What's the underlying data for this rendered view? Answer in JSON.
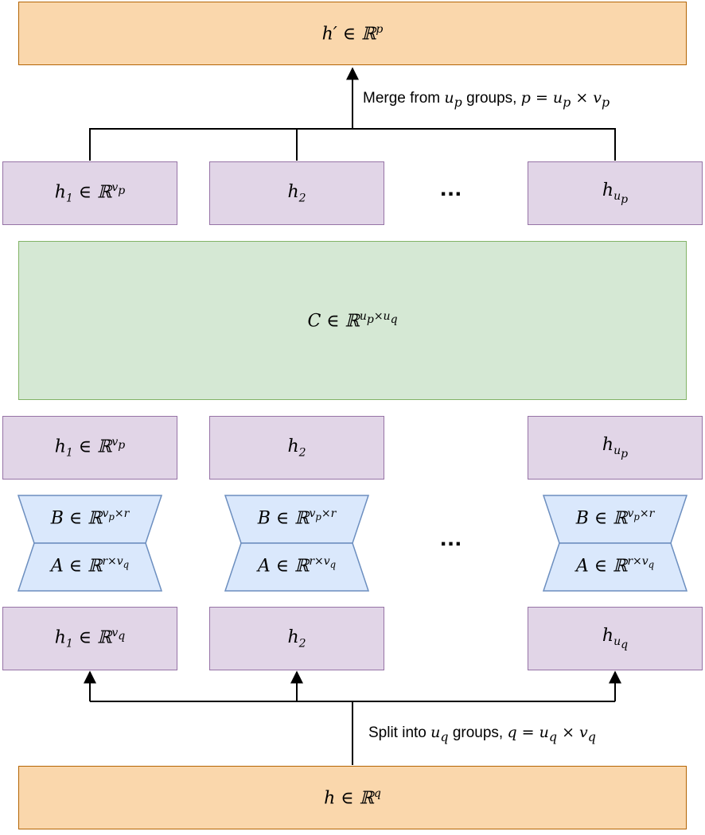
{
  "top_output": {
    "symbol": "h′",
    "set": "ℝ",
    "dim": "p"
  },
  "merge_label": {
    "prefix": "Merge from ",
    "var": "u",
    "var_sub": "p",
    "suffix": " groups, ",
    "eq": "p = u",
    "eq_sub1": "p",
    "times": " × v",
    "eq_sub2": "p"
  },
  "split_label": {
    "prefix": "Split into ",
    "var": "u",
    "var_sub": "q",
    "suffix": " groups, ",
    "eq": "q = u",
    "eq_sub1": "q",
    "times": " × v",
    "eq_sub2": "q"
  },
  "upper_groups": [
    {
      "sym": "h",
      "sub": "1",
      "rest": " ∈ ℝ",
      "sup": "v",
      "sup_sub": "p"
    },
    {
      "sym": "h",
      "sub": "2"
    },
    {
      "sym": "h",
      "sub": "u",
      "sub_sub": "p"
    }
  ],
  "core": {
    "sym": "C ∈ ℝ",
    "sup": "u",
    "sup_sub1": "p",
    "times": "×u",
    "sup_sub2": "q"
  },
  "middle_groups": [
    {
      "sym": "h",
      "sub": "1",
      "rest": " ∈ ℝ",
      "sup": "v",
      "sup_sub": "p"
    },
    {
      "sym": "h",
      "sub": "2"
    },
    {
      "sym": "h",
      "sub": "u",
      "sub_sub": "p"
    }
  ],
  "lora_B": {
    "sym": "B ∈ ℝ",
    "sup": "v",
    "sup_sub": "p",
    "rest": "×r"
  },
  "lora_A": {
    "sym": "A ∈ ℝ",
    "sup": "r×v",
    "sup_sub": "q"
  },
  "lower_groups": [
    {
      "sym": "h",
      "sub": "1",
      "rest": " ∈ ℝ",
      "sup": "v",
      "sup_sub": "q"
    },
    {
      "sym": "h",
      "sub": "2"
    },
    {
      "sym": "h",
      "sub": "u",
      "sub_sub": "q"
    }
  ],
  "bottom_input": {
    "symbol": "h",
    "set": " ∈ ℝ",
    "dim": "q"
  },
  "ellipsis": "...",
  "colors": {
    "orange_fill": "#fad7ac",
    "orange_stroke": "#b46504",
    "purple_fill": "#e1d5e7",
    "purple_stroke": "#9673a6",
    "green_fill": "#d5e8d4",
    "green_stroke": "#82b366",
    "blue_fill": "#dae8fc",
    "blue_stroke": "#6c8ebf"
  }
}
